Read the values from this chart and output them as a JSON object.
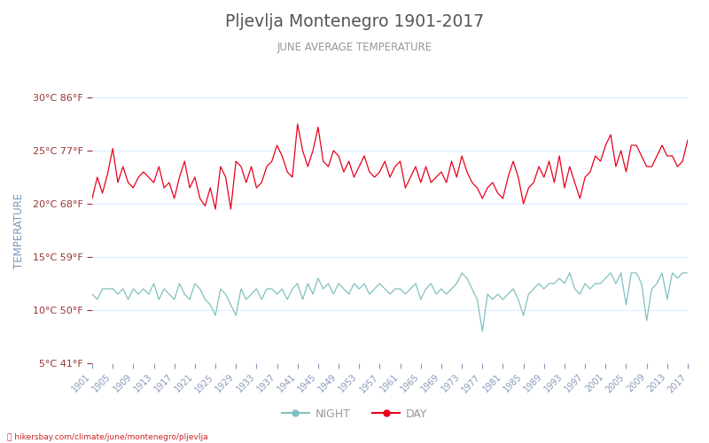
{
  "title": "Pljevlja Montenegro 1901-2017",
  "subtitle": "JUNE AVERAGE TEMPERATURE",
  "ylabel": "TEMPERATURE",
  "url": "hikersbay.com/climate/june/montenegro/pljevlja",
  "legend_night": "NIGHT",
  "legend_day": "DAY",
  "years": [
    1901,
    1902,
    1903,
    1904,
    1905,
    1906,
    1907,
    1908,
    1909,
    1910,
    1911,
    1912,
    1913,
    1914,
    1915,
    1916,
    1917,
    1918,
    1919,
    1920,
    1921,
    1922,
    1923,
    1924,
    1925,
    1926,
    1927,
    1928,
    1929,
    1930,
    1931,
    1932,
    1933,
    1934,
    1935,
    1936,
    1937,
    1938,
    1939,
    1940,
    1941,
    1942,
    1943,
    1944,
    1945,
    1946,
    1947,
    1948,
    1949,
    1950,
    1951,
    1952,
    1953,
    1954,
    1955,
    1956,
    1957,
    1958,
    1959,
    1960,
    1961,
    1962,
    1963,
    1964,
    1965,
    1966,
    1967,
    1968,
    1969,
    1970,
    1971,
    1972,
    1973,
    1974,
    1975,
    1976,
    1977,
    1978,
    1979,
    1980,
    1981,
    1982,
    1983,
    1984,
    1985,
    1986,
    1987,
    1988,
    1989,
    1990,
    1991,
    1992,
    1993,
    1994,
    1995,
    1996,
    1997,
    1998,
    1999,
    2000,
    2001,
    2002,
    2003,
    2004,
    2005,
    2006,
    2007,
    2008,
    2009,
    2010,
    2011,
    2012,
    2013,
    2014,
    2015,
    2016,
    2017
  ],
  "day_temps": [
    20.5,
    22.5,
    21.0,
    22.8,
    25.2,
    22.0,
    23.5,
    22.0,
    21.5,
    22.5,
    23.0,
    22.5,
    22.0,
    23.5,
    21.5,
    22.0,
    20.5,
    22.5,
    24.0,
    21.5,
    22.5,
    20.5,
    19.8,
    21.5,
    19.5,
    23.5,
    22.5,
    19.5,
    24.0,
    23.5,
    22.0,
    23.5,
    21.5,
    22.0,
    23.5,
    24.0,
    25.5,
    24.5,
    23.0,
    22.5,
    27.5,
    25.0,
    23.5,
    25.0,
    27.2,
    24.0,
    23.5,
    25.0,
    24.5,
    23.0,
    24.0,
    22.5,
    23.5,
    24.5,
    23.0,
    22.5,
    23.0,
    24.0,
    22.5,
    23.5,
    24.0,
    21.5,
    22.5,
    23.5,
    22.0,
    23.5,
    22.0,
    22.5,
    23.0,
    22.0,
    24.0,
    22.5,
    24.5,
    23.0,
    22.0,
    21.5,
    20.5,
    21.5,
    22.0,
    21.0,
    20.5,
    22.5,
    24.0,
    22.5,
    20.0,
    21.5,
    22.0,
    23.5,
    22.5,
    24.0,
    22.0,
    24.5,
    21.5,
    23.5,
    22.0,
    20.5,
    22.5,
    23.0,
    24.5,
    24.0,
    25.5,
    26.5,
    23.5,
    25.0,
    23.0,
    25.5,
    25.5,
    24.5,
    23.5,
    23.5,
    24.5,
    25.5,
    24.5,
    24.5,
    23.5,
    24.0,
    26.0
  ],
  "night_temps": [
    11.5,
    11.0,
    12.0,
    12.0,
    12.0,
    11.5,
    12.0,
    11.0,
    12.0,
    11.5,
    12.0,
    11.5,
    12.5,
    11.0,
    12.0,
    11.5,
    11.0,
    12.5,
    11.5,
    11.0,
    12.5,
    12.0,
    11.0,
    10.5,
    9.5,
    12.0,
    11.5,
    10.5,
    9.5,
    12.0,
    11.0,
    11.5,
    12.0,
    11.0,
    12.0,
    12.0,
    11.5,
    12.0,
    11.0,
    12.0,
    12.5,
    11.0,
    12.5,
    11.5,
    13.0,
    12.0,
    12.5,
    11.5,
    12.5,
    12.0,
    11.5,
    12.5,
    12.0,
    12.5,
    11.5,
    12.0,
    12.5,
    12.0,
    11.5,
    12.0,
    12.0,
    11.5,
    12.0,
    12.5,
    11.0,
    12.0,
    12.5,
    11.5,
    12.0,
    11.5,
    12.0,
    12.5,
    13.5,
    13.0,
    12.0,
    11.0,
    8.0,
    11.5,
    11.0,
    11.5,
    11.0,
    11.5,
    12.0,
    11.0,
    9.5,
    11.5,
    12.0,
    12.5,
    12.0,
    12.5,
    12.5,
    13.0,
    12.5,
    13.5,
    12.0,
    11.5,
    12.5,
    12.0,
    12.5,
    12.5,
    13.0,
    13.5,
    12.5,
    13.5,
    10.5,
    13.5,
    13.5,
    12.5,
    9.0,
    12.0,
    12.5,
    13.5,
    11.0,
    13.5,
    13.0,
    13.5,
    13.5
  ],
  "ylim": [
    5,
    30
  ],
  "yticks_c": [
    5,
    10,
    15,
    20,
    25,
    30
  ],
  "yticks_f": [
    41,
    50,
    59,
    68,
    77,
    86
  ],
  "title_color": "#555555",
  "subtitle_color": "#999999",
  "day_color": "#e8001c",
  "night_color": "#80c0c0",
  "ylabel_color": "#7799bb",
  "tick_label_color": "#993333",
  "xtick_color": "#8899bb",
  "grid_color": "#ddeeff",
  "background_color": "#ffffff",
  "url_color": "#cc2222",
  "url_icon_color": "#ff4444"
}
